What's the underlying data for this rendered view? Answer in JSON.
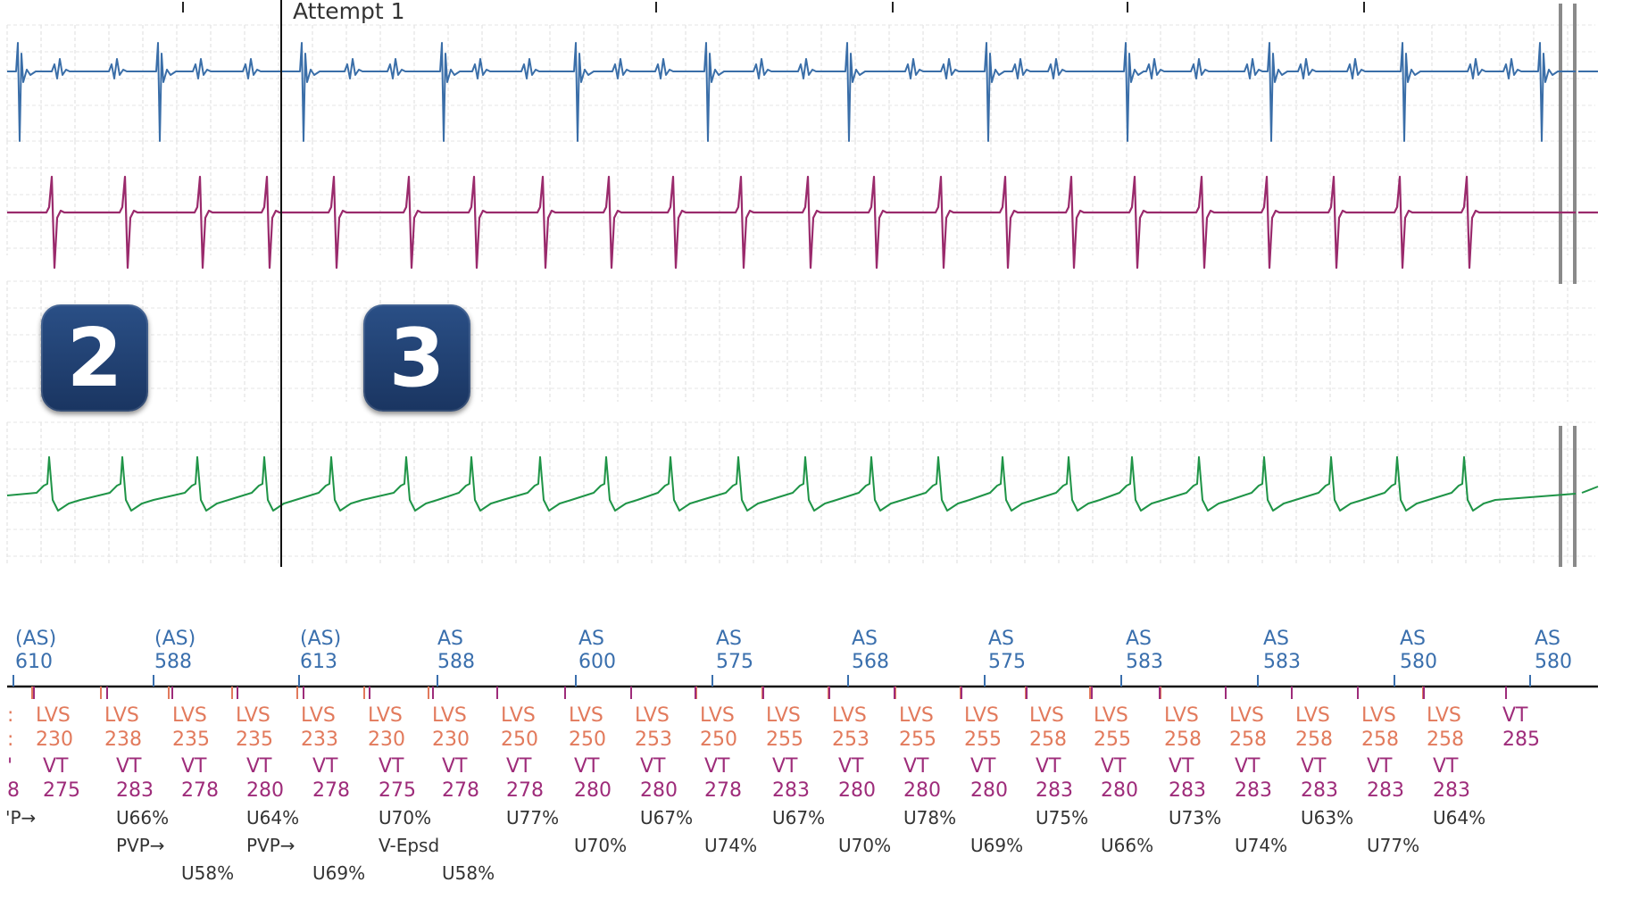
{
  "attempt_label": "Attempt 1",
  "badges": [
    "2",
    "3"
  ],
  "colors": {
    "egm_1": "#3a6ea8",
    "egm_2": "#9a2a6c",
    "egm_3": "#1f9447",
    "atrial_marker": "#3a6fad",
    "lvs_marker": "#e27a5c",
    "vt_marker": "#9e2c7a",
    "badge": "#1f3d6e"
  },
  "atrial_markers": [
    {
      "label": "(AS)",
      "value": "610"
    },
    {
      "label": "(AS)",
      "value": "588"
    },
    {
      "label": "(AS)",
      "value": "613"
    },
    {
      "label": "AS",
      "value": "588"
    },
    {
      "label": "AS",
      "value": "600"
    },
    {
      "label": "AS",
      "value": "575"
    },
    {
      "label": "AS",
      "value": "568"
    },
    {
      "label": "AS",
      "value": "575"
    },
    {
      "label": "AS",
      "value": "583"
    },
    {
      "label": "AS",
      "value": "583"
    },
    {
      "label": "AS",
      "value": "580"
    },
    {
      "label": "AS",
      "value": "580"
    }
  ],
  "lvs_markers": [
    {
      "label": "LVS",
      "value": "230"
    },
    {
      "label": "LVS",
      "value": "238"
    },
    {
      "label": "LVS",
      "value": "235"
    },
    {
      "label": "LVS",
      "value": "235"
    },
    {
      "label": "LVS",
      "value": "233"
    },
    {
      "label": "LVS",
      "value": "230"
    },
    {
      "label": "LVS",
      "value": "230"
    },
    {
      "label": "LVS",
      "value": "250"
    },
    {
      "label": "LVS",
      "value": "250"
    },
    {
      "label": "LVS",
      "value": "253"
    },
    {
      "label": "LVS",
      "value": "250"
    },
    {
      "label": "LVS",
      "value": "255"
    },
    {
      "label": "LVS",
      "value": "253"
    },
    {
      "label": "LVS",
      "value": "255"
    },
    {
      "label": "LVS",
      "value": "255"
    },
    {
      "label": "LVS",
      "value": "258"
    },
    {
      "label": "LVS",
      "value": "255"
    },
    {
      "label": "LVS",
      "value": "258"
    },
    {
      "label": "LVS",
      "value": "258"
    },
    {
      "label": "LVS",
      "value": "258"
    },
    {
      "label": "LVS",
      "value": "258"
    },
    {
      "label": "LVS",
      "value": "258"
    }
  ],
  "final_vt_marker": {
    "label": "VT",
    "value": "285"
  },
  "vt_markers": [
    {
      "label": "VT",
      "value": "275"
    },
    {
      "label": "VT",
      "value": "283"
    },
    {
      "label": "VT",
      "value": "278"
    },
    {
      "label": "VT",
      "value": "280"
    },
    {
      "label": "VT",
      "value": "278"
    },
    {
      "label": "VT",
      "value": "275"
    },
    {
      "label": "VT",
      "value": "278"
    },
    {
      "label": "VT",
      "value": "278"
    },
    {
      "label": "VT",
      "value": "280"
    },
    {
      "label": "VT",
      "value": "280"
    },
    {
      "label": "VT",
      "value": "278"
    },
    {
      "label": "VT",
      "value": "283"
    },
    {
      "label": "VT",
      "value": "280"
    },
    {
      "label": "VT",
      "value": "280"
    },
    {
      "label": "VT",
      "value": "280"
    },
    {
      "label": "VT",
      "value": "283"
    },
    {
      "label": "VT",
      "value": "280"
    },
    {
      "label": "VT",
      "value": "283"
    },
    {
      "label": "VT",
      "value": "283"
    },
    {
      "label": "VT",
      "value": "283"
    },
    {
      "label": "VT",
      "value": "283"
    },
    {
      "label": "VT",
      "value": "283"
    }
  ],
  "clipped_left": {
    "lvs": [
      ":",
      ":"
    ],
    "vt": [
      "'",
      "8"
    ],
    "note": "'P→"
  },
  "annotations": {
    "row1": [
      "U66%",
      "U64%",
      "U70%",
      "U77%",
      "U67%",
      "U67%",
      "U78%",
      "U75%",
      "U73%",
      "U63%",
      "U64%"
    ],
    "row2": [
      "PVP→",
      "PVP→",
      "V-Epsd",
      "U70%",
      "U74%",
      "U70%",
      "U69%",
      "U66%",
      "U74%",
      "U77%"
    ],
    "row3": [
      "U58%",
      "U69%",
      "U58%"
    ]
  }
}
